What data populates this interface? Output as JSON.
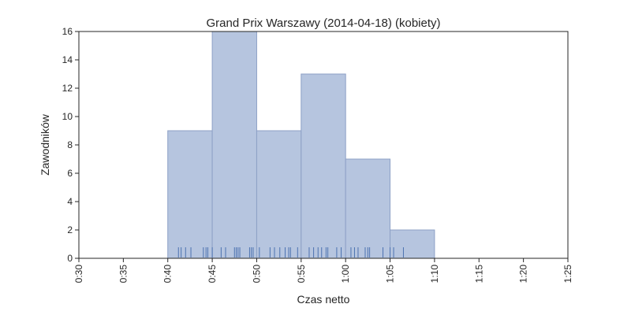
{
  "chart_data": {
    "type": "bar",
    "title": "Grand Prix Warszawy (2014-04-18) (kobiety)",
    "xlabel": "Czas netto",
    "ylabel": "Zawodników",
    "x_ticks": [
      "0:30",
      "0:35",
      "0:40",
      "0:45",
      "0:50",
      "0:55",
      "1:00",
      "1:05",
      "1:10",
      "1:15",
      "1:20",
      "1:25"
    ],
    "x_tick_minutes": [
      30,
      35,
      40,
      45,
      50,
      55,
      60,
      65,
      70,
      75,
      80,
      85
    ],
    "xlim_minutes": [
      30,
      85
    ],
    "y_ticks": [
      0,
      2,
      4,
      6,
      8,
      10,
      12,
      14,
      16
    ],
    "ylim": [
      0,
      16
    ],
    "bins": [
      {
        "start": 40,
        "end": 45,
        "count": 9
      },
      {
        "start": 45,
        "end": 50,
        "count": 16
      },
      {
        "start": 50,
        "end": 55,
        "count": 9
      },
      {
        "start": 55,
        "end": 60,
        "count": 13
      },
      {
        "start": 60,
        "end": 65,
        "count": 7
      },
      {
        "start": 65,
        "end": 70,
        "count": 2
      }
    ],
    "rug_minutes": [
      41.2,
      41.5,
      42.0,
      42.6,
      44.0,
      44.3,
      44.5,
      45.0,
      46.0,
      46.5,
      47.5,
      47.7,
      47.9,
      48.1,
      49.2,
      49.4,
      49.6,
      50.3,
      51.5,
      52.0,
      52.6,
      53.2,
      53.6,
      53.8,
      54.6,
      55.9,
      56.4,
      56.9,
      57.3,
      57.8,
      58.0,
      59.0,
      59.5,
      60.6,
      61.0,
      61.4,
      62.2,
      62.5,
      62.7,
      64.2,
      65.0,
      65.4,
      66.5
    ],
    "colors": {
      "bar": "#b6c5df",
      "rug": "#4c72b0",
      "axis": "#262626"
    },
    "grid": false
  }
}
